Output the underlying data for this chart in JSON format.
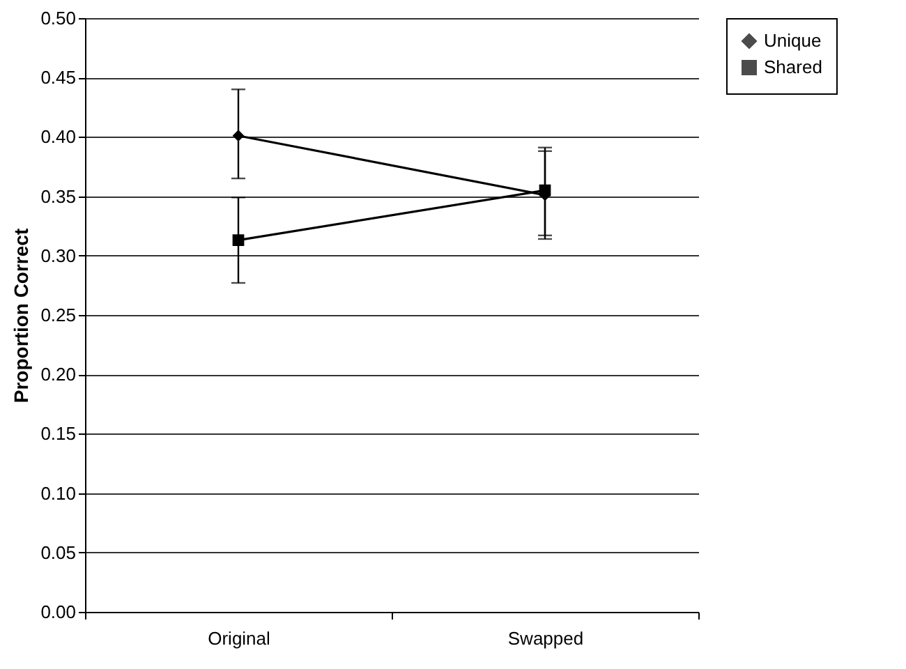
{
  "chart_data": {
    "type": "line",
    "ylabel": "Proportion Correct",
    "categories": [
      "Original",
      "Swapped"
    ],
    "series": [
      {
        "name": "Unique",
        "color": "#000000",
        "marker": "diamond",
        "values": [
          0.401,
          0.351
        ],
        "errors": [
          [
            0.365,
            0.44
          ],
          [
            0.314,
            0.388
          ]
        ]
      },
      {
        "name": "Shared",
        "color": "#000000",
        "marker": "square",
        "values": [
          0.313,
          0.355
        ],
        "errors": [
          [
            0.277,
            0.349
          ],
          [
            0.317,
            0.391
          ]
        ]
      }
    ],
    "ylim": [
      0,
      0.5
    ],
    "yticks": [
      {
        "value": 0,
        "label": "0.00"
      },
      0.05,
      {
        "value": 0.1,
        "label": "0.10"
      },
      0.15,
      {
        "value": 0.2,
        "label": "0.20"
      },
      0.25,
      {
        "value": 0.3,
        "label": "0.30"
      },
      0.35,
      {
        "value": 0.4,
        "label": "0.40"
      },
      0.45,
      {
        "value": 0.5,
        "label": "0.50"
      }
    ],
    "grid": "y",
    "legend": "right",
    "line_style": "solid"
  }
}
